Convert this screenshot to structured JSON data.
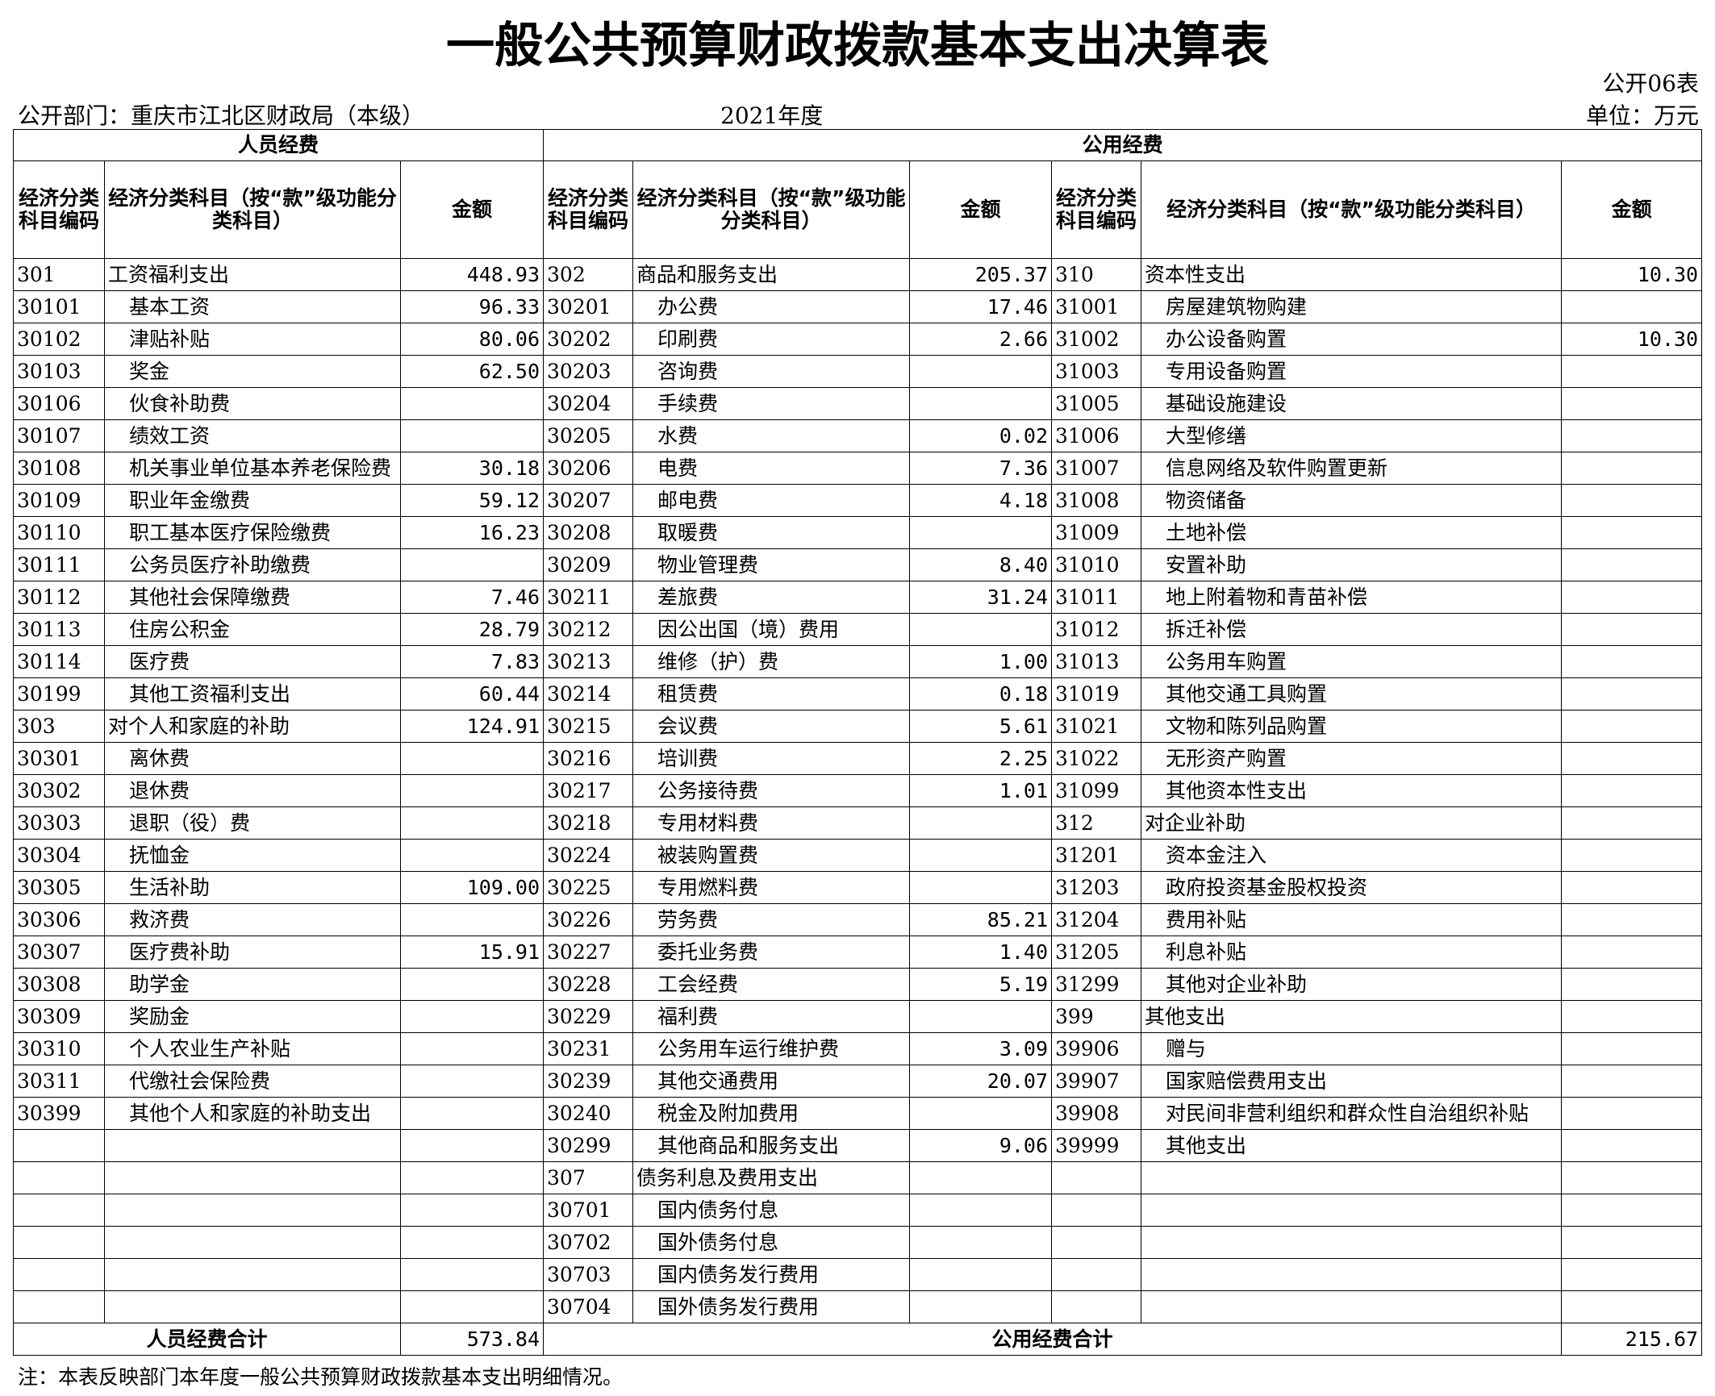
{
  "header": {
    "title": "一般公共预算财政拨款基本支出决算表",
    "form_no": "公开06表",
    "department": "公开部门：重庆市江北区财政局（本级）",
    "year": "2021年度",
    "unit": "单位：万元"
  },
  "table": {
    "groups": [
      "人员经费",
      "公用经费"
    ],
    "columns": [
      "经济分类科目编码",
      "经济分类科目（按“款”级功能分类科目）",
      "金额",
      "经济分类科目编码",
      "经济分类科目（按“款”级功能分类科目）",
      "金额",
      "经济分类科目编码",
      "经济分类科目（按“款”级功能分类科目）",
      "金额"
    ],
    "rows": [
      [
        "301",
        "工资福利支出",
        "448.93",
        "302",
        "商品和服务支出",
        "205.37",
        "310",
        "资本性支出",
        "10.30"
      ],
      [
        "30101",
        "基本工资",
        "96.33",
        "30201",
        "办公费",
        "17.46",
        "31001",
        "房屋建筑物购建",
        null
      ],
      [
        "30102",
        "津贴补贴",
        "80.06",
        "30202",
        "印刷费",
        "2.66",
        "31002",
        "办公设备购置",
        "10.30"
      ],
      [
        "30103",
        "奖金",
        "62.50",
        "30203",
        "咨询费",
        null,
        "31003",
        "专用设备购置",
        null
      ],
      [
        "30106",
        "伙食补助费",
        null,
        "30204",
        "手续费",
        null,
        "31005",
        "基础设施建设",
        null
      ],
      [
        "30107",
        "绩效工资",
        null,
        "30205",
        "水费",
        "0.02",
        "31006",
        "大型修缮",
        null
      ],
      [
        "30108",
        "机关事业单位基本养老保险费",
        "30.18",
        "30206",
        "电费",
        "7.36",
        "31007",
        "信息网络及软件购置更新",
        null
      ],
      [
        "30109",
        "职业年金缴费",
        "59.12",
        "30207",
        "邮电费",
        "4.18",
        "31008",
        "物资储备",
        null
      ],
      [
        "30110",
        "职工基本医疗保险缴费",
        "16.23",
        "30208",
        "取暖费",
        null,
        "31009",
        "土地补偿",
        null
      ],
      [
        "30111",
        "公务员医疗补助缴费",
        null,
        "30209",
        "物业管理费",
        "8.40",
        "31010",
        "安置补助",
        null
      ],
      [
        "30112",
        "其他社会保障缴费",
        "7.46",
        "30211",
        "差旅费",
        "31.24",
        "31011",
        "地上附着物和青苗补偿",
        null
      ],
      [
        "30113",
        "住房公积金",
        "28.79",
        "30212",
        "因公出国（境）费用",
        null,
        "31012",
        "拆迁补偿",
        null
      ],
      [
        "30114",
        "医疗费",
        "7.83",
        "30213",
        "维修（护）费",
        "1.00",
        "31013",
        "公务用车购置",
        null
      ],
      [
        "30199",
        "其他工资福利支出",
        "60.44",
        "30214",
        "租赁费",
        "0.18",
        "31019",
        "其他交通工具购置",
        null
      ],
      [
        "303",
        "对个人和家庭的补助",
        "124.91",
        "30215",
        "会议费",
        "5.61",
        "31021",
        "文物和陈列品购置",
        null
      ],
      [
        "30301",
        "离休费",
        null,
        "30216",
        "培训费",
        "2.25",
        "31022",
        "无形资产购置",
        null
      ],
      [
        "30302",
        "退休费",
        null,
        "30217",
        "公务接待费",
        "1.01",
        "31099",
        "其他资本性支出",
        null
      ],
      [
        "30303",
        "退职（役）费",
        null,
        "30218",
        "专用材料费",
        null,
        "312",
        "对企业补助",
        null
      ],
      [
        "30304",
        "抚恤金",
        null,
        "30224",
        "被装购置费",
        null,
        "31201",
        "资本金注入",
        null
      ],
      [
        "30305",
        "生活补助",
        "109.00",
        "30225",
        "专用燃料费",
        null,
        "31203",
        "政府投资基金股权投资",
        null
      ],
      [
        "30306",
        "救济费",
        null,
        "30226",
        "劳务费",
        "85.21",
        "31204",
        "费用补贴",
        null
      ],
      [
        "30307",
        "医疗费补助",
        "15.91",
        "30227",
        "委托业务费",
        "1.40",
        "31205",
        "利息补贴",
        null
      ],
      [
        "30308",
        "助学金",
        null,
        "30228",
        "工会经费",
        "5.19",
        "31299",
        "其他对企业补助",
        null
      ],
      [
        "30309",
        "奖励金",
        null,
        "30229",
        "福利费",
        null,
        "399",
        "其他支出",
        null
      ],
      [
        "30310",
        "个人农业生产补贴",
        null,
        "30231",
        "公务用车运行维护费",
        "3.09",
        "39906",
        "赠与",
        null
      ],
      [
        "30311",
        "代缴社会保险费",
        null,
        "30239",
        "其他交通费用",
        "20.07",
        "39907",
        "国家赔偿费用支出",
        null
      ],
      [
        "30399",
        "其他个人和家庭的补助支出",
        null,
        "30240",
        "税金及附加费用",
        null,
        "39908",
        "对民间非营利组织和群众性自治组织补贴",
        null
      ],
      [
        null,
        null,
        null,
        "30299",
        "其他商品和服务支出",
        "9.06",
        "39999",
        "其他支出",
        null
      ],
      [
        null,
        null,
        null,
        "307",
        "债务利息及费用支出",
        null,
        null,
        null,
        null
      ],
      [
        null,
        null,
        null,
        "30701",
        "国内债务付息",
        null,
        null,
        null,
        null
      ],
      [
        null,
        null,
        null,
        "30702",
        "国外债务付息",
        null,
        null,
        null,
        null
      ],
      [
        null,
        null,
        null,
        "30703",
        "国内债务发行费用",
        null,
        null,
        null,
        null
      ],
      [
        null,
        null,
        null,
        "30704",
        "国外债务发行费用",
        null,
        null,
        null,
        null
      ]
    ],
    "totals": {
      "personnel_label": "人员经费合计",
      "personnel_value": "573.84",
      "public_label": "公用经费合计",
      "public_value": "215.67"
    }
  },
  "note": "注：本表反映部门本年度一般公共预算财政拨款基本支出明细情况。"
}
